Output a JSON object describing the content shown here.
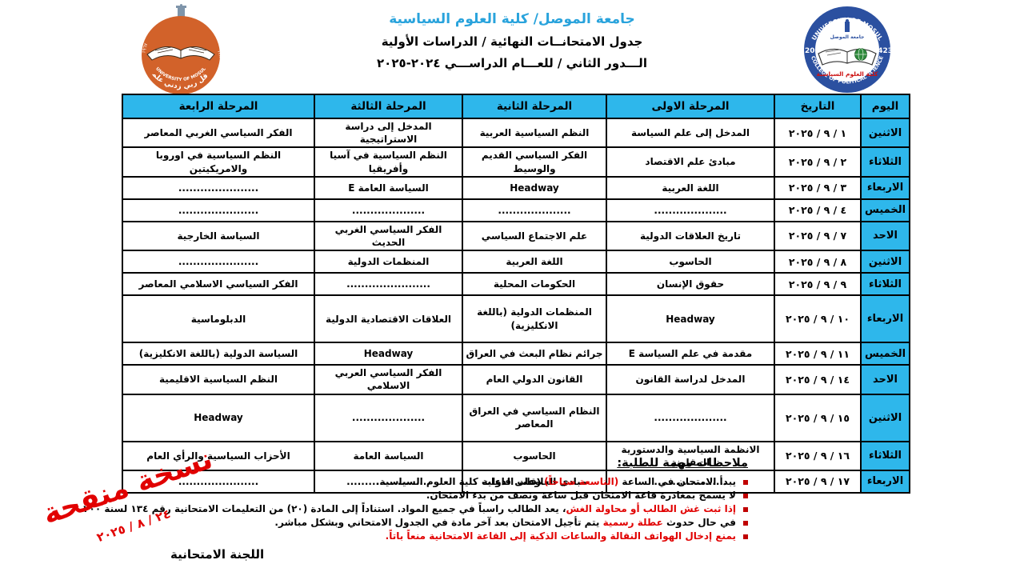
{
  "header": {
    "university_line": "جامعة الموصل/ كلية العلوم السياسية",
    "schedule_line": "جدول الامتحانــات النهائية / الدراسات الأولية",
    "term_line": "الـــدور الثاني  / للعـــام الدراســـي ٢٠٢٤-٢٠٢٥"
  },
  "logos": {
    "left": {
      "name": "UNIVERSITY OF MOSUL",
      "motto": "وقل ربي زدني علما",
      "year_right": "١٣٨٧",
      "year_left": "١٩٦٧"
    },
    "right": {
      "top": "UNIVERSITY OF MOSUL",
      "bottom": "COLLEGE OF POLITICAL SCIENCE",
      "year_left": "2002",
      "year_right": "1423",
      "inner_top": "جامعة الموصل",
      "arabic_name": "كلية العلوم السياسية"
    }
  },
  "table": {
    "headers": [
      "اليوم",
      "التاريخ",
      "المرحلة الاولى",
      "المرحلة الثانية",
      "المرحلة الثالثة",
      "المرحلة الرابعة"
    ],
    "rows": [
      {
        "day": "الاثنين",
        "date": "١ / ٩ / ٢٠٢٥",
        "cells": [
          "المدخل إلى علم السياسة",
          "النظم السياسية العربية",
          "المدخل إلى دراسة الاستراتيجية",
          "الفكر السياسي الغربي المعاصر"
        ]
      },
      {
        "day": "الثلاثاء",
        "date": "٢ / ٩ / ٢٠٢٥",
        "cells": [
          "مبادئ علم الاقتصاد",
          "الفكر السياسي القديم والوسيط",
          "النظم السياسية في آسيا وأفريقيا",
          "النظم السياسية في اوروبا والامريكيتين"
        ]
      },
      {
        "day": "الاربعاء",
        "date": "٣ / ٩ / ٢٠٢٥",
        "cells": [
          "اللغة العربية",
          "Headway",
          "السياسة العامة E",
          "......................"
        ]
      },
      {
        "day": "الخميس",
        "date": "٤ / ٩ / ٢٠٢٥",
        "cells": [
          "....................",
          "....................",
          "....................",
          "......................"
        ]
      },
      {
        "day": "الاحد",
        "date": "٧ / ٩ / ٢٠٢٥",
        "cells": [
          "تاريخ العلاقات الدولية",
          "علم الاجتماع السياسي",
          "الفكر السياسي الغربي الحديث",
          "السياسة الخارجية"
        ]
      },
      {
        "day": "الاثنين",
        "date": "٨ / ٩ / ٢٠٢٥",
        "cells": [
          "الحاسوب",
          "اللغة العربية",
          "المنظمات الدولية",
          "......................"
        ]
      },
      {
        "day": "الثلاثاء",
        "date": "٩ / ٩ / ٢٠٢٥",
        "cells": [
          "حقوق الإنسان",
          "الحكومات المحلية",
          ".......................",
          "الفكر السياسي الاسلامي المعاصر"
        ]
      },
      {
        "day": "الاربعاء",
        "date": "١٠ / ٩ / ٢٠٢٥",
        "tall": true,
        "cells": [
          "Headway",
          "المنظمات الدولية (باللغة الانكليزية)",
          "العلاقات الاقتصادية الدولية",
          "الدبلوماسية"
        ]
      },
      {
        "day": "الخميس",
        "date": "١١ / ٩ / ٢٠٢٥",
        "cells": [
          "مقدمة في علم السياسة E",
          "جرائم نظام البعث في العراق",
          "Headway",
          "السياسة الدولية (باللغة الانكليزية)"
        ]
      },
      {
        "day": "الاحد",
        "date": "١٤ / ٩ / ٢٠٢٥",
        "cells": [
          "المدخل لدراسة القانون",
          "القانون الدولي العام",
          "الفكر السياسي العربي الاسلامي",
          "النظم السياسية الاقليمية"
        ]
      },
      {
        "day": "الاثنين",
        "date": "١٥ / ٩ / ٢٠٢٥",
        "tall": true,
        "cells": [
          "....................",
          "النظام السياسي في العراق المعاصر",
          "....................",
          "Headway"
        ]
      },
      {
        "day": "الثلاثاء",
        "date": "١٦ / ٩ / ٢٠٢٥",
        "cells": [
          "الانظمة السياسية والدستورية المقارنة",
          "الحاسوب",
          "السياسة العامة",
          "الأحزاب السياسية والرأي العام"
        ]
      },
      {
        "day": "الاربعاء",
        "date": "١٧ / ٩ / ٢٠٢٥",
        "cells": [
          "....................",
          "مبادى العلاقات الدولية",
          ".......................",
          "......................"
        ]
      }
    ]
  },
  "notes": {
    "heading": "ملاحظات مهمة للطلبة:",
    "items": [
      {
        "segments": [
          {
            "t": "يبدأ الامتحان في الساعة ",
            "c": "black"
          },
          {
            "t": "(التاسعة صباحاً)",
            "c": "red"
          },
          {
            "t": " وعلى قاعات كلية العلوم السياسية.",
            "c": "black"
          }
        ]
      },
      {
        "segments": [
          {
            "t": "لا يسمح بمغادرة قاعة الامتحان قبل ساعة ونصف من بدء الامتحان.",
            "c": "black"
          }
        ]
      },
      {
        "segments": [
          {
            "t": "إذا ثبت غش الطالب أو محاولة الغش",
            "c": "red"
          },
          {
            "t": "، يعد الطالب راسباً في جميع المواد. استناداً إلى المادة (٢٠) من التعليمات الامتحانية رقم ١٣٤ لسنة ٢٠٠",
            "c": "black"
          }
        ]
      },
      {
        "segments": [
          {
            "t": "في حال حدوث ",
            "c": "black"
          },
          {
            "t": "عطلة رسمية",
            "c": "red"
          },
          {
            "t": " يتم تأجيل الامتحان بعد آخر مادة في الجدول الامتحاني وبشكل مباشر.",
            "c": "black"
          }
        ]
      },
      {
        "segments": [
          {
            "t": "يمنع إدخال الهواتف النقالة والساعات الذكية إلى القاعة الامتحانية منعاً باتاً.",
            "c": "red"
          }
        ]
      }
    ]
  },
  "stamp": {
    "text": "نسخة منقحة",
    "date": "٢٤ / ٨ / ٢٠٢٥"
  },
  "footer": {
    "committee": "اللجنة الامتحانية"
  },
  "colors": {
    "accent_cyan": "#2eb7eb",
    "title_blue": "#29a3dc",
    "stamp_red": "#e10000",
    "bullet_red": "#c00000",
    "logo_orange": "#d2622a",
    "logo_blue": "#2b50a0",
    "globe_green": "#2f8a3c"
  }
}
